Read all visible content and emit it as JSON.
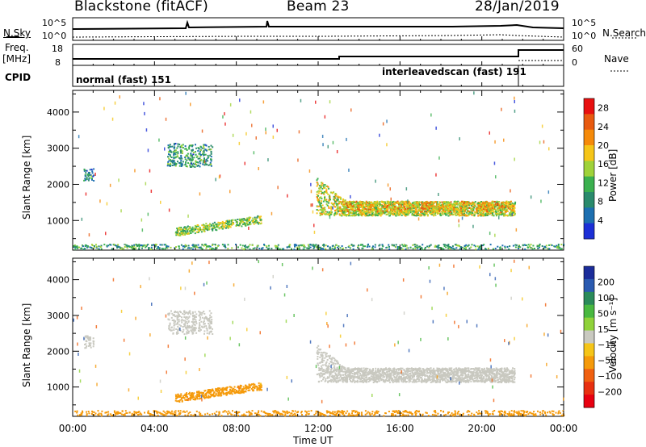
{
  "header": {
    "radar": "Blackstone (fitACF)",
    "beam": "Beam 23",
    "date": "28/Jan/2019"
  },
  "top_panels": {
    "nsky_label": "N.Sky",
    "nsearch_label": "N.Search",
    "freq_label": "Freq.",
    "freq_unit": "[MHz]",
    "nave_label": "Nave",
    "cpid_label": "CPID",
    "noise_ticks_left": [
      "10^5",
      "10^0"
    ],
    "noise_ticks_right": [
      "10^5",
      "10^0"
    ],
    "freq_ticks": [
      "18",
      "8"
    ],
    "nave_ticks": [
      "60",
      "0"
    ],
    "cpid_modes": [
      {
        "label": "normal (fast) 151",
        "start_hour": 0,
        "end_hour": 21.9
      },
      {
        "label": "interleavedscan (fast) 191",
        "start_hour": 21.9,
        "end_hour": 24
      }
    ]
  },
  "colors": {
    "power_scale": [
      "#1c2fd6",
      "#1d6fb0",
      "#2a8a6c",
      "#3bb04f",
      "#9fd23a",
      "#f5c518",
      "#f58a0a",
      "#e85a10",
      "#e81010"
    ],
    "velocity_scale": [
      "#1b2c9a",
      "#2a5ab0",
      "#2a8a5a",
      "#49b840",
      "#8fd23a",
      "#c9c9c0",
      "#f5c518",
      "#f59a0a",
      "#f06010",
      "#e83010",
      "#e80010"
    ]
  },
  "chart_data": [
    {
      "type": "heatmap",
      "name": "power",
      "xlabel": "Time UT",
      "ylabel": "Slant Range [km]",
      "xlim": [
        0,
        24
      ],
      "ylim": [
        180,
        4600
      ],
      "xticks": [
        "00:00",
        "04:00",
        "08:00",
        "12:00",
        "16:00",
        "20:00",
        "00:00"
      ],
      "yticks": [
        1000,
        2000,
        3000,
        4000
      ],
      "colorbar": {
        "label": "Power [dB]",
        "ticks": [
          4,
          8,
          12,
          16,
          20,
          24,
          28
        ],
        "range": [
          0,
          30
        ]
      },
      "regions": [
        {
          "t0": 0,
          "t1": 24,
          "r0": 220,
          "r1": 360,
          "value": 10
        },
        {
          "t0": 4.6,
          "t1": 6.8,
          "r0": 2500,
          "r1": 3150,
          "value": 9
        },
        {
          "t0": 0.5,
          "t1": 1.0,
          "r0": 2100,
          "r1": 2450,
          "value": 8
        },
        {
          "t0": 5.0,
          "t1": 9.2,
          "r0": 650,
          "r1": 1100,
          "value": 14
        },
        {
          "t0": 11.9,
          "t1": 21.6,
          "r0": 1150,
          "r1": 2200,
          "value": 16
        },
        {
          "t0": 13.0,
          "t1": 21.5,
          "r0": 1250,
          "r1": 1550,
          "value": 20
        }
      ]
    },
    {
      "type": "heatmap",
      "name": "velocity",
      "xlabel": "Time UT",
      "ylabel": "Slant Range [km]",
      "xlim": [
        0,
        24
      ],
      "ylim": [
        180,
        4600
      ],
      "xticks": [
        "00:00",
        "04:00",
        "08:00",
        "12:00",
        "16:00",
        "20:00",
        "00:00"
      ],
      "yticks": [
        1000,
        2000,
        3000,
        4000
      ],
      "colorbar": {
        "label": "Velocity [m s⁻¹]",
        "ticks": [
          "200",
          "100",
          "50",
          "15",
          "−15",
          "−50",
          "−100",
          "−200"
        ]
      },
      "regions": [
        {
          "t0": 0,
          "t1": 24,
          "r0": 220,
          "r1": 360,
          "value": -50
        },
        {
          "t0": 4.6,
          "t1": 6.8,
          "r0": 2500,
          "r1": 3150,
          "value": 0
        },
        {
          "t0": 0.5,
          "t1": 1.0,
          "r0": 2100,
          "r1": 2450,
          "value": 0
        },
        {
          "t0": 5.0,
          "t1": 9.2,
          "r0": 650,
          "r1": 1100,
          "value": -60
        },
        {
          "t0": 11.9,
          "t1": 21.6,
          "r0": 1150,
          "r1": 2200,
          "value": 0
        }
      ]
    }
  ]
}
